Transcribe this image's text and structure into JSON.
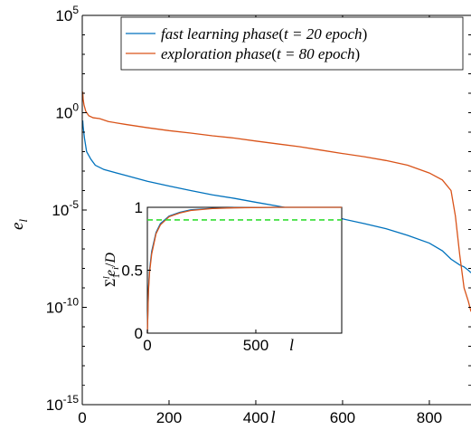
{
  "colors": {
    "series_1": "#0072BD",
    "series_2": "#D95319",
    "reference": "#33DD33",
    "axes": "#000000",
    "background": "#ffffff"
  },
  "chart_data": [
    {
      "id": "main",
      "type": "line",
      "y_scale": "log",
      "xlabel": "l",
      "ylabel": "e_l",
      "xlim": [
        0,
        896
      ],
      "ylim": [
        1e-15,
        100000
      ],
      "x_ticks": [
        0,
        200,
        400,
        600,
        800
      ],
      "y_ticks": [
        {
          "value": 1e-15,
          "base": "10",
          "exp": "-15"
        },
        {
          "value": 1e-10,
          "base": "10",
          "exp": "-10"
        },
        {
          "value": 1e-05,
          "base": "10",
          "exp": "-5"
        },
        {
          "value": 1,
          "base": "10",
          "exp": "0"
        },
        {
          "value": 100000,
          "base": "10",
          "exp": "5"
        }
      ],
      "grid": false,
      "legend_position": "top-right",
      "series": [
        {
          "name": {
            "main": "fast learning phase",
            "t_label": "t = 20 epoch"
          },
          "color_key": "series_1",
          "points": [
            [
              1,
              0.4
            ],
            [
              2,
              0.2
            ],
            [
              5,
              0.05
            ],
            [
              10,
              0.01
            ],
            [
              20,
              0.004
            ],
            [
              30,
              0.002
            ],
            [
              50,
              0.0012
            ],
            [
              100,
              0.0006
            ],
            [
              150,
              0.0003
            ],
            [
              200,
              0.00017
            ],
            [
              250,
              0.0001
            ],
            [
              300,
              6e-05
            ],
            [
              350,
              4e-05
            ],
            [
              400,
              2.5e-05
            ],
            [
              450,
              1.6e-05
            ],
            [
              500,
              1e-05
            ],
            [
              550,
              6e-06
            ],
            [
              600,
              3.5e-06
            ],
            [
              650,
              2e-06
            ],
            [
              700,
              1.1e-06
            ],
            [
              750,
              5e-07
            ],
            [
              800,
              2e-07
            ],
            [
              830,
              8e-08
            ],
            [
              850,
              3e-08
            ],
            [
              870,
              1.5e-08
            ],
            [
              880,
              1.2e-08
            ],
            [
              890,
              8e-09
            ],
            [
              896,
              6e-09
            ]
          ]
        },
        {
          "name": {
            "main": "exploration phase",
            "t_label": "t = 80 epoch"
          },
          "color_key": "series_2",
          "points": [
            [
              1,
              12
            ],
            [
              2,
              5
            ],
            [
              4,
              2.5
            ],
            [
              8,
              1.2
            ],
            [
              15,
              0.7
            ],
            [
              25,
              0.55
            ],
            [
              40,
              0.5
            ],
            [
              60,
              0.35
            ],
            [
              100,
              0.25
            ],
            [
              150,
              0.17
            ],
            [
              200,
              0.12
            ],
            [
              250,
              0.09
            ],
            [
              300,
              0.065
            ],
            [
              350,
              0.05
            ],
            [
              400,
              0.035
            ],
            [
              450,
              0.025
            ],
            [
              500,
              0.018
            ],
            [
              550,
              0.012
            ],
            [
              600,
              0.008
            ],
            [
              650,
              0.0055
            ],
            [
              700,
              0.0035
            ],
            [
              750,
              0.002
            ],
            [
              800,
              0.0008
            ],
            [
              830,
              0.00035
            ],
            [
              850,
              0.0001
            ],
            [
              860,
              5e-06
            ],
            [
              870,
              5e-08
            ],
            [
              880,
              1e-09
            ],
            [
              890,
              2e-10
            ],
            [
              896,
              6e-11
            ]
          ]
        }
      ]
    },
    {
      "id": "inset",
      "type": "line",
      "xlabel": "l",
      "ylabel": "Σ_1^l e_i / D",
      "xlim": [
        0,
        896
      ],
      "ylim": [
        0,
        1
      ],
      "x_ticks": [
        0,
        500
      ],
      "y_ticks": [
        0,
        0.5,
        1
      ],
      "grid": false,
      "series": [
        {
          "color_key": "series_1",
          "points": [
            [
              0,
              0
            ],
            [
              5,
              0.35
            ],
            [
              10,
              0.5
            ],
            [
              20,
              0.65
            ],
            [
              40,
              0.8
            ],
            [
              60,
              0.87
            ],
            [
              100,
              0.93
            ],
            [
              150,
              0.96
            ],
            [
              200,
              0.98
            ],
            [
              300,
              0.992
            ],
            [
              400,
              0.997
            ],
            [
              600,
              1.0
            ],
            [
              896,
              1.0
            ]
          ]
        },
        {
          "color_key": "series_2",
          "points": [
            [
              0,
              0
            ],
            [
              5,
              0.33
            ],
            [
              10,
              0.48
            ],
            [
              20,
              0.63
            ],
            [
              40,
              0.79
            ],
            [
              60,
              0.86
            ],
            [
              100,
              0.925
            ],
            [
              150,
              0.955
            ],
            [
              200,
              0.975
            ],
            [
              300,
              0.99
            ],
            [
              400,
              0.996
            ],
            [
              600,
              1.0
            ],
            [
              896,
              1.0
            ]
          ]
        },
        {
          "color_key": "reference",
          "style": "dashed",
          "points": [
            [
              0,
              0.9
            ],
            [
              896,
              0.9
            ]
          ]
        }
      ]
    }
  ]
}
